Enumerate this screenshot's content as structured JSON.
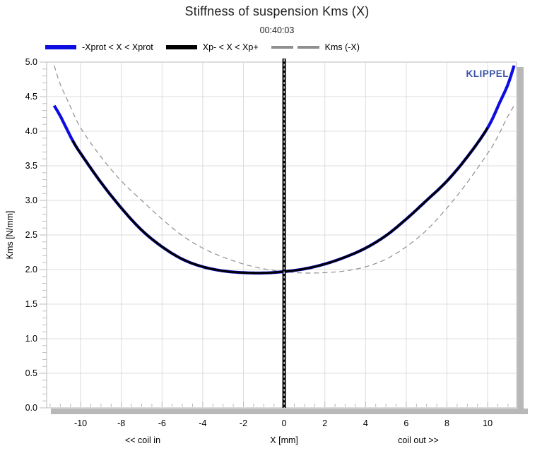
{
  "header": {
    "title": "Stiffness of suspension Kms (X)",
    "subtitle": "00:40:03"
  },
  "watermark": "KLIPPEL",
  "legend": {
    "items": [
      {
        "label": "-Xprot < X < Xprot",
        "color": "#0d0de0",
        "style": "solid"
      },
      {
        "label": "Xp- < X < Xp+",
        "color": "#000000",
        "style": "solid"
      },
      {
        "label": "Kms (-X)",
        "color": "#8f8f8f",
        "style": "dashed"
      }
    ]
  },
  "chart_data": {
    "type": "line",
    "title": "Stiffness of suspension Kms (X)",
    "subtitle": "00:40:03",
    "xlabel": "X [mm]",
    "ylabel": "Kms [N/mm]",
    "x_left_annotation": "<< coil in",
    "x_right_annotation": "coil out >>",
    "xlim": [
      -11.67,
      11.42
    ],
    "ylim": [
      0,
      5
    ],
    "x_major_ticks": [
      -10,
      -8,
      -6,
      -4,
      -2,
      0,
      2,
      4,
      6,
      8,
      10
    ],
    "x_minor_step": 0.5,
    "y_major_step": 0.5,
    "y_minor_step": 0.1,
    "y_tick_labels": [
      "0.0",
      "0.5",
      "1.0",
      "1.5",
      "2.0",
      "2.5",
      "3.0",
      "3.5",
      "4.0",
      "4.5",
      "5.0"
    ],
    "grid": true,
    "legend_position": "top",
    "vline_x": 0,
    "series": [
      {
        "name": "-Xprot < X < Xprot",
        "color": "#0d0de0",
        "width": 4.2,
        "x_range": [
          -11.3,
          11.3
        ]
      },
      {
        "name": "Xp- < X < Xp+",
        "color": "#000000",
        "width": 3.0,
        "x_range": [
          -10.4,
          10.0
        ]
      },
      {
        "name": "Kms (-X)",
        "color": "#8f8f8f",
        "width": 1.2,
        "dash": "7 5",
        "mirror": true
      }
    ],
    "points": [
      [
        -11.3,
        4.37
      ],
      [
        -11.0,
        4.22
      ],
      [
        -10.4,
        3.87
      ],
      [
        -10,
        3.68
      ],
      [
        -9,
        3.26
      ],
      [
        -8,
        2.89
      ],
      [
        -7,
        2.57
      ],
      [
        -6,
        2.33
      ],
      [
        -5,
        2.15
      ],
      [
        -4,
        2.04
      ],
      [
        -3,
        1.98
      ],
      [
        -2,
        1.955
      ],
      [
        -1,
        1.95
      ],
      [
        0,
        1.97
      ],
      [
        1,
        2.01
      ],
      [
        2,
        2.08
      ],
      [
        3,
        2.18
      ],
      [
        4,
        2.31
      ],
      [
        5,
        2.49
      ],
      [
        6,
        2.73
      ],
      [
        7,
        3.0
      ],
      [
        8,
        3.28
      ],
      [
        9,
        3.63
      ],
      [
        10,
        4.05
      ],
      [
        10.6,
        4.42
      ],
      [
        11.0,
        4.68
      ],
      [
        11.3,
        4.95
      ]
    ]
  },
  "colors": {
    "grid": "#dcdcdc",
    "frame": "#b8b8b8",
    "tick": "#bdbdbd",
    "shadow": "#b8b8b8",
    "text": "#000000",
    "watermark": "#3b55a8"
  }
}
